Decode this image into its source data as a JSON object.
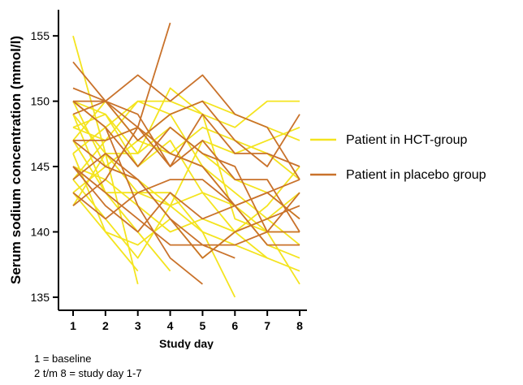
{
  "chart_data": {
    "type": "line",
    "ylabel": "Serum sodium concentration (mmol/l)",
    "xlabel": "Study day",
    "x": [
      1,
      2,
      3,
      4,
      5,
      6,
      7,
      8
    ],
    "xticks": [
      "1",
      "2",
      "3",
      "4",
      "5",
      "6",
      "7",
      "8"
    ],
    "yticks": [
      "135",
      "140",
      "145",
      "150",
      "155"
    ],
    "ylim": [
      134,
      157
    ],
    "grid": false,
    "legend_position": "right",
    "legend": [
      {
        "label": "Patient in HCT-group",
        "color": "#F4E41F"
      },
      {
        "label": "Patient in placebo group",
        "color": "#C9722B"
      }
    ],
    "series": [
      {
        "group": "HCT",
        "values": [
          155,
          146,
          136,
          null,
          null,
          null,
          null,
          null
        ]
      },
      {
        "group": "HCT",
        "values": [
          150,
          149,
          146,
          151,
          149,
          141,
          140,
          136
        ]
      },
      {
        "group": "HCT",
        "values": [
          149,
          143,
          143,
          143,
          140,
          135,
          null,
          null
        ]
      },
      {
        "group": "HCT",
        "values": [
          148,
          147,
          150,
          150,
          149,
          148,
          150,
          150
        ]
      },
      {
        "group": "HCT",
        "values": [
          146,
          140,
          137,
          null,
          null,
          null,
          null,
          null
        ]
      },
      {
        "group": "HCT",
        "values": [
          144,
          141,
          138,
          142,
          143,
          140,
          141,
          143
        ]
      },
      {
        "group": "HCT",
        "values": [
          143,
          145,
          144,
          142,
          147,
          146,
          147,
          148
        ]
      },
      {
        "group": "HCT",
        "values": [
          147,
          150,
          147,
          146,
          148,
          147,
          146,
          144
        ]
      },
      {
        "group": "HCT",
        "values": [
          150,
          145,
          147,
          149,
          145,
          142,
          140,
          140
        ]
      },
      {
        "group": "HCT",
        "values": [
          145,
          144,
          142,
          140,
          141,
          140,
          138,
          137
        ]
      },
      {
        "group": "HCT",
        "values": [
          142,
          146,
          146,
          148,
          146,
          144,
          143,
          141
        ]
      },
      {
        "group": "HCT",
        "values": [
          148,
          149,
          145,
          147,
          143,
          142,
          139,
          138
        ]
      },
      {
        "group": "HCT",
        "values": [
          146,
          148,
          150,
          149,
          150,
          149,
          148,
          147
        ]
      },
      {
        "group": "HCT",
        "values": [
          147,
          143,
          140,
          137,
          null,
          null,
          null,
          null
        ]
      },
      {
        "group": "HCT",
        "values": [
          144,
          147,
          148,
          146,
          145,
          143,
          141,
          139
        ]
      },
      {
        "group": "HCT",
        "values": [
          149,
          146,
          143,
          142,
          140,
          139,
          138,
          null
        ]
      },
      {
        "group": "HCT",
        "values": [
          143,
          140,
          139,
          141,
          138,
          140,
          142,
          145
        ]
      },
      {
        "group": "Placebo",
        "values": [
          153,
          150,
          148,
          156,
          null,
          null,
          null,
          null
        ]
      },
      {
        "group": "Placebo",
        "values": [
          151,
          150,
          152,
          150,
          152,
          149,
          148,
          144
        ]
      },
      {
        "group": "Placebo",
        "values": [
          150,
          148,
          142,
          138,
          136,
          null,
          null,
          null
        ]
      },
      {
        "group": "Placebo",
        "values": [
          150,
          150,
          147,
          149,
          150,
          147,
          145,
          149
        ]
      },
      {
        "group": "Placebo",
        "values": [
          147,
          147,
          148,
          146,
          145,
          142,
          143,
          141
        ]
      },
      {
        "group": "Placebo",
        "values": [
          145,
          143,
          141,
          139,
          139,
          138,
          null,
          null
        ]
      },
      {
        "group": "Placebo",
        "values": [
          144,
          146,
          144,
          141,
          139,
          139,
          140,
          143
        ]
      },
      {
        "group": "Placebo",
        "values": [
          142,
          144,
          148,
          145,
          149,
          146,
          146,
          145
        ]
      },
      {
        "group": "Placebo",
        "values": [
          149,
          150,
          149,
          145,
          147,
          144,
          144,
          140
        ]
      },
      {
        "group": "Placebo",
        "values": [
          145,
          142,
          140,
          143,
          141,
          142,
          143,
          144
        ]
      },
      {
        "group": "Placebo",
        "values": [
          143,
          141,
          143,
          144,
          144,
          142,
          139,
          139
        ]
      },
      {
        "group": "Placebo",
        "values": [
          150,
          148,
          145,
          148,
          146,
          145,
          140,
          140
        ]
      },
      {
        "group": "Placebo",
        "values": [
          147,
          145,
          144,
          141,
          138,
          140,
          141,
          142
        ]
      }
    ]
  },
  "notes": [
    "1 = baseline",
    "2 t/m 8 = study day 1-7"
  ]
}
